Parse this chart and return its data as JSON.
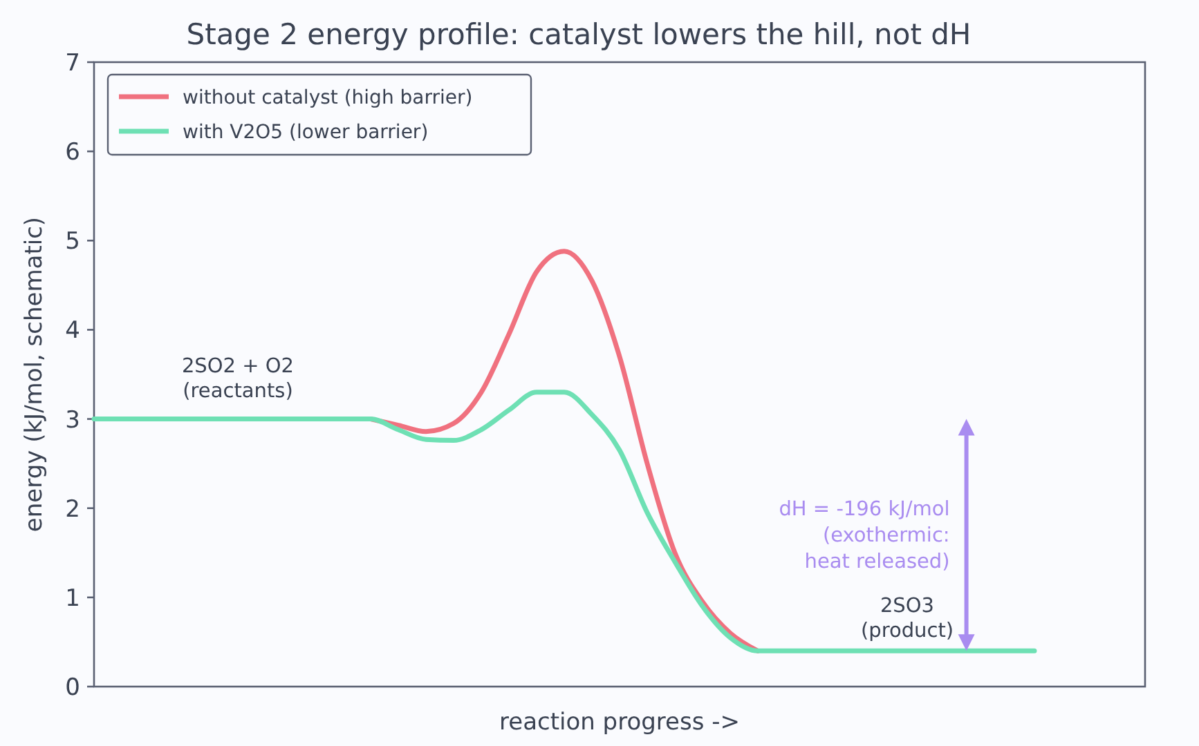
{
  "chart_data": {
    "type": "line",
    "title": "Stage 2 energy profile: catalyst lowers the hill, not dH",
    "xlabel": "reaction progress  ->",
    "ylabel": "energy  (kJ/mol, schematic)",
    "categories": [
      null,
      null,
      null,
      null,
      null,
      null,
      null,
      null,
      null,
      null,
      null,
      null,
      null,
      null,
      null,
      null,
      null,
      null,
      null,
      null,
      null,
      null,
      null,
      null,
      null,
      null,
      null,
      null,
      null,
      null,
      null,
      null,
      null,
      null,
      null,
      null,
      null,
      null,
      null
    ],
    "series": [
      {
        "name": "without catalyst (high barrier)",
        "color": "#f0717f",
        "values": [
          null,
          null,
          null,
          null,
          null,
          null,
          null,
          null,
          null,
          null,
          3,
          2.93,
          2.86,
          2.95,
          3.3,
          3.95,
          4.65,
          4.88,
          4.55,
          3.7,
          2.5,
          1.5,
          0.95,
          0.6,
          0.4,
          null,
          null,
          null,
          null,
          null,
          null,
          null,
          null,
          null,
          null,
          null,
          null,
          null,
          null
        ]
      },
      {
        "name": "with V2O5 (lower barrier)",
        "color": "#6ee0b4",
        "values": [
          3,
          3,
          3,
          3,
          3,
          3,
          3,
          3,
          3,
          3,
          3,
          2.88,
          2.77,
          2.76,
          2.88,
          3.1,
          3.3,
          3.3,
          3.05,
          2.65,
          1.95,
          1.4,
          0.9,
          0.55,
          0.4,
          0.4,
          0.4,
          0.4,
          0.4,
          0.4,
          0.4,
          0.4,
          0.4,
          0.4,
          0.4,
          null,
          null,
          null,
          null
        ]
      }
    ],
    "ylim": [
      0,
      7
    ],
    "yticks": [
      0,
      1,
      2,
      3,
      4,
      5,
      6,
      7
    ],
    "grid": false,
    "legend": "top left",
    "marker": "none",
    "line_style": "solid",
    "annotations": [
      "2SO2 + O2\n(reactants)",
      "2SO3\n(product)",
      "dH = -196 kJ/mol\n(exothermic:\nheat released)"
    ]
  }
}
